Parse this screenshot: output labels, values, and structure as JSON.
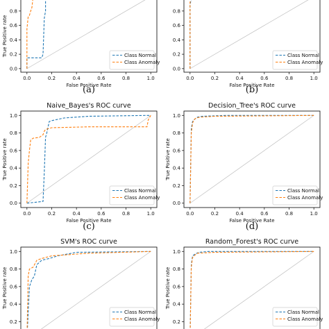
{
  "series_names": [
    "Class Normal",
    "Class Anomaly"
  ],
  "series_colors": [
    "#1f77b4",
    "#ff7f0e"
  ],
  "diagonal_color": "#bdbdbd",
  "x_label": "False Positive Rate",
  "y_label": "True Positive rate",
  "chart_data": [
    {
      "type": "line",
      "panel_label": "(a)",
      "title": "",
      "xlabel": "False Positive Rate",
      "ylabel": "True Positive rate",
      "xlim": [
        0,
        1
      ],
      "ylim": [
        0,
        1
      ],
      "xticks": [
        "0.0",
        "0.2",
        "0.4",
        "0.6",
        "0.8",
        "1.0"
      ],
      "yticks": [
        "0.0",
        "0.2",
        "0.4",
        "0.6",
        "0.8"
      ],
      "legend_position": "lower-right",
      "series": [
        {
          "name": "Class Normal",
          "x": [
            0,
            0,
            0.02,
            0.12,
            0.13,
            0.14,
            0.15,
            0.15
          ],
          "y": [
            0,
            0.15,
            0.15,
            0.15,
            0.2,
            0.7,
            0.8,
            1.0
          ]
        },
        {
          "name": "Class Anomaly",
          "x": [
            0,
            0,
            0.01,
            0.02,
            0.03,
            0.04,
            0.05
          ],
          "y": [
            0,
            0.55,
            0.72,
            0.74,
            0.8,
            0.85,
            1.0
          ]
        }
      ]
    },
    {
      "type": "line",
      "panel_label": "(b)",
      "title": "",
      "xlabel": "False Positive Rate",
      "ylabel": "",
      "xlim": [
        0,
        1
      ],
      "ylim": [
        0,
        1
      ],
      "xticks": [
        "0.0",
        "0.2",
        "0.4",
        "0.6",
        "0.8",
        "1.0"
      ],
      "yticks": [
        "0.0",
        "0.2",
        "0.4",
        "0.6",
        "0.8"
      ],
      "legend_position": "lower-right",
      "series": [
        {
          "name": "Class Normal",
          "x": [
            0,
            0,
            0.01,
            0.01
          ],
          "y": [
            0,
            0.9,
            0.95,
            1.0
          ]
        },
        {
          "name": "Class Anomaly",
          "x": [
            0,
            0,
            0.005,
            0.01
          ],
          "y": [
            0,
            0.92,
            0.96,
            1.0
          ]
        }
      ]
    },
    {
      "type": "line",
      "panel_label": "(c)",
      "title": "Naive_Bayes's ROC curve",
      "xlabel": "False Positive Rate",
      "ylabel": "True Positive rate",
      "xlim": [
        0,
        1
      ],
      "ylim": [
        0,
        1
      ],
      "xticks": [
        "0.0",
        "0.2",
        "0.4",
        "0.6",
        "0.8",
        "1.0"
      ],
      "yticks": [
        "0.0",
        "0.2",
        "0.4",
        "0.6",
        "0.8",
        "1.0"
      ],
      "legend_position": "lower-right",
      "series": [
        {
          "name": "Class Normal",
          "x": [
            0,
            0.13,
            0.14,
            0.15,
            0.16,
            0.18,
            0.2,
            0.3,
            0.5,
            0.97,
            1.0
          ],
          "y": [
            0,
            0.02,
            0.35,
            0.75,
            0.8,
            0.93,
            0.94,
            0.97,
            0.99,
            1.0,
            1.0
          ]
        },
        {
          "name": "Class Anomaly",
          "x": [
            0,
            0.01,
            0.02,
            0.03,
            0.05,
            0.1,
            0.13,
            0.14,
            0.15,
            0.2,
            0.5,
            0.97,
            0.98,
            1.0
          ],
          "y": [
            0,
            0.45,
            0.6,
            0.72,
            0.74,
            0.75,
            0.78,
            0.82,
            0.84,
            0.86,
            0.87,
            0.87,
            0.95,
            1.0
          ]
        }
      ]
    },
    {
      "type": "line",
      "panel_label": "(d)",
      "title": "Decision_Tree's ROC curve",
      "xlabel": "False Positive Rate",
      "ylabel": "True Positive rate",
      "xlim": [
        0,
        1
      ],
      "ylim": [
        0,
        1
      ],
      "xticks": [
        "0.0",
        "0.2",
        "0.4",
        "0.6",
        "0.8",
        "1.0"
      ],
      "yticks": [
        "0.0",
        "0.2",
        "0.4",
        "0.6",
        "0.8",
        "1.0"
      ],
      "legend_position": "lower-right",
      "series": [
        {
          "name": "Class Normal",
          "x": [
            0,
            0.01,
            0.02,
            0.04,
            0.06,
            0.1,
            0.3,
            1.0
          ],
          "y": [
            0,
            0.85,
            0.93,
            0.96,
            0.98,
            0.99,
            1.0,
            1.0
          ]
        },
        {
          "name": "Class Anomaly",
          "x": [
            0,
            0.01,
            0.02,
            0.03,
            0.05,
            0.08,
            0.2,
            1.0
          ],
          "y": [
            0,
            0.8,
            0.91,
            0.95,
            0.97,
            0.98,
            0.99,
            1.0
          ]
        }
      ]
    },
    {
      "type": "line",
      "panel_label": "",
      "title": "SVM's ROC curve",
      "xlabel": "",
      "ylabel": "True Positive rate",
      "xlim": [
        0,
        1
      ],
      "ylim": [
        0,
        1
      ],
      "xticks": [],
      "yticks": [
        "0.2",
        "0.4",
        "0.6",
        "0.8",
        "1.0"
      ],
      "legend_position": "lower-right",
      "series": [
        {
          "name": "Class Normal",
          "x": [
            0,
            0.02,
            0.04,
            0.06,
            0.08,
            0.12,
            0.18,
            0.25,
            0.4,
            1.0
          ],
          "y": [
            0,
            0.6,
            0.68,
            0.72,
            0.85,
            0.9,
            0.92,
            0.95,
            0.99,
            1.0
          ]
        },
        {
          "name": "Class Anomaly",
          "x": [
            0,
            0.01,
            0.02,
            0.05,
            0.08,
            0.12,
            0.2,
            0.5,
            1.0
          ],
          "y": [
            0,
            0.72,
            0.8,
            0.82,
            0.9,
            0.92,
            0.95,
            0.98,
            1.0
          ]
        }
      ]
    },
    {
      "type": "line",
      "panel_label": "",
      "title": "Random_Forest's ROC curve",
      "xlabel": "",
      "ylabel": "True Positive rate",
      "xlim": [
        0,
        1
      ],
      "ylim": [
        0,
        1
      ],
      "xticks": [],
      "yticks": [
        "0.2",
        "0.4",
        "0.6",
        "0.8",
        "1.0"
      ],
      "legend_position": "lower-right",
      "series": [
        {
          "name": "Class Normal",
          "x": [
            0,
            0.01,
            0.02,
            0.04,
            0.07,
            0.15,
            1.0
          ],
          "y": [
            0,
            0.85,
            0.95,
            0.97,
            0.99,
            1.0,
            1.0
          ]
        },
        {
          "name": "Class Anomaly",
          "x": [
            0,
            0.01,
            0.02,
            0.04,
            0.06,
            0.2,
            1.0
          ],
          "y": [
            0,
            0.82,
            0.93,
            0.96,
            0.98,
            0.99,
            1.0
          ]
        }
      ]
    }
  ]
}
